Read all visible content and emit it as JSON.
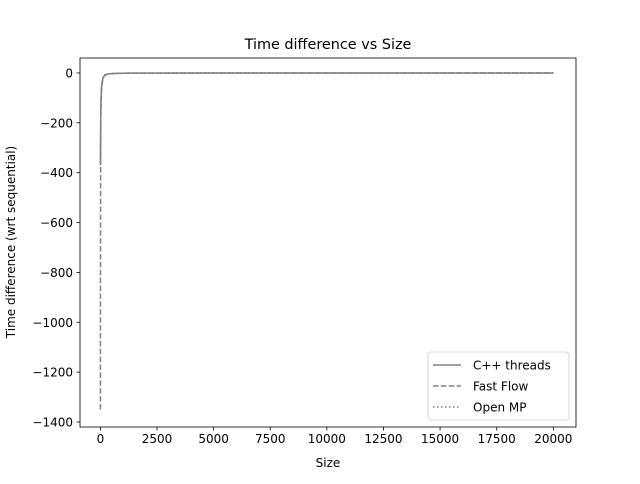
{
  "chart_data": {
    "type": "line",
    "title": "Time difference vs Size",
    "xlabel": "Size",
    "ylabel": "Time difference (wrt sequential)",
    "xlim": [
      -900,
      21000
    ],
    "ylim": [
      -1420,
      60
    ],
    "xticks": [
      0,
      2500,
      5000,
      7500,
      10000,
      12500,
      15000,
      17500,
      20000
    ],
    "xtick_labels": [
      "0",
      "2500",
      "5000",
      "7500",
      "10000",
      "12500",
      "15000",
      "17500",
      "20000"
    ],
    "yticks": [
      -1400,
      -1200,
      -1000,
      -800,
      -600,
      -400,
      -200,
      0
    ],
    "ytick_labels": [
      "−1400",
      "−1200",
      "−1000",
      "−800",
      "−600",
      "−400",
      "−200",
      "0"
    ],
    "grid": false,
    "legend_position": "lower-right",
    "series": [
      {
        "name": "C++ threads",
        "style": "solid",
        "color": "#808080",
        "x": [
          1,
          5,
          10,
          20,
          30,
          50,
          80,
          120,
          160,
          200,
          300,
          400,
          600,
          1000,
          2000,
          5000,
          10000,
          15000,
          20000
        ],
        "y": [
          -370,
          -300,
          -230,
          -150,
          -100,
          -60,
          -35,
          -20,
          -12,
          -8,
          -5,
          -3,
          -2,
          -1,
          -0.5,
          -0.3,
          -0.2,
          -0.1,
          -0.1
        ]
      },
      {
        "name": "Fast Flow",
        "style": "dashed",
        "color": "#808080",
        "x": [
          1,
          5,
          10,
          20,
          30,
          50,
          80,
          120,
          160,
          200,
          300,
          400,
          600,
          1000,
          2000,
          5000,
          10000,
          15000,
          20000
        ],
        "y": [
          -1350,
          -700,
          -400,
          -200,
          -120,
          -70,
          -40,
          -22,
          -14,
          -9,
          -5,
          -3,
          -2,
          -1,
          -0.5,
          -0.3,
          -0.2,
          -0.1,
          -0.1
        ]
      },
      {
        "name": "Open MP",
        "style": "dotted",
        "color": "#808080",
        "x": [
          1,
          5,
          10,
          20,
          30,
          50,
          80,
          120,
          160,
          200,
          300,
          400,
          600,
          1000,
          2000,
          5000,
          10000,
          15000,
          20000
        ],
        "y": [
          -360,
          -290,
          -220,
          -140,
          -95,
          -55,
          -32,
          -18,
          -11,
          -7,
          -4,
          -3,
          -2,
          -1,
          -0.5,
          -0.3,
          -0.2,
          -0.1,
          -0.1
        ]
      }
    ]
  }
}
